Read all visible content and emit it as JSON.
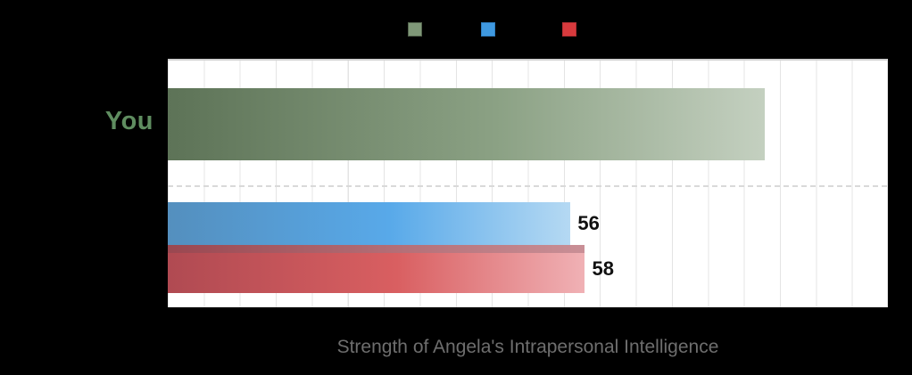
{
  "chart_data": {
    "type": "bar",
    "orientation": "horizontal",
    "title": "Strength of Angela's Intrapersonal Intelligence",
    "xlim": [
      0,
      100
    ],
    "gridline_interval": 5,
    "grid": "vertical-lines-on",
    "legend_position": "top-center",
    "categories": [
      "You",
      "",
      ""
    ],
    "bars": [
      {
        "row_label": "You",
        "value": 83,
        "value_label": "",
        "gradient": [
          "#5d7357",
          "#8ba184 55%",
          "#c4d0c0 100%"
        ]
      },
      {
        "row_label": "",
        "value": 56,
        "value_label": "56",
        "gradient": [
          "#548fbe",
          "#58a9e9 55%",
          "#b5d9f3 100%"
        ]
      },
      {
        "row_label": "",
        "value": 58,
        "value_label": "58",
        "gradient": [
          "#b04a52",
          "#d95f61 55%",
          "#f0b1b5 100%"
        ],
        "top_stripe": [
          "#9a4750",
          "#c98f96"
        ]
      }
    ],
    "legend": [
      {
        "fill": "#7f9878",
        "border": "#55664f"
      },
      {
        "fill": "#3f99e0",
        "border": "#2f7ec0"
      },
      {
        "fill": "#d83a3d",
        "border": "#b32f32"
      }
    ],
    "colors": {
      "background": "#000000",
      "plot_background": "#ffffff",
      "gridline": "#e4e4e4",
      "row_label": "#5f8d60",
      "value_label": "#111111",
      "title": "#6e6e6e"
    }
  }
}
